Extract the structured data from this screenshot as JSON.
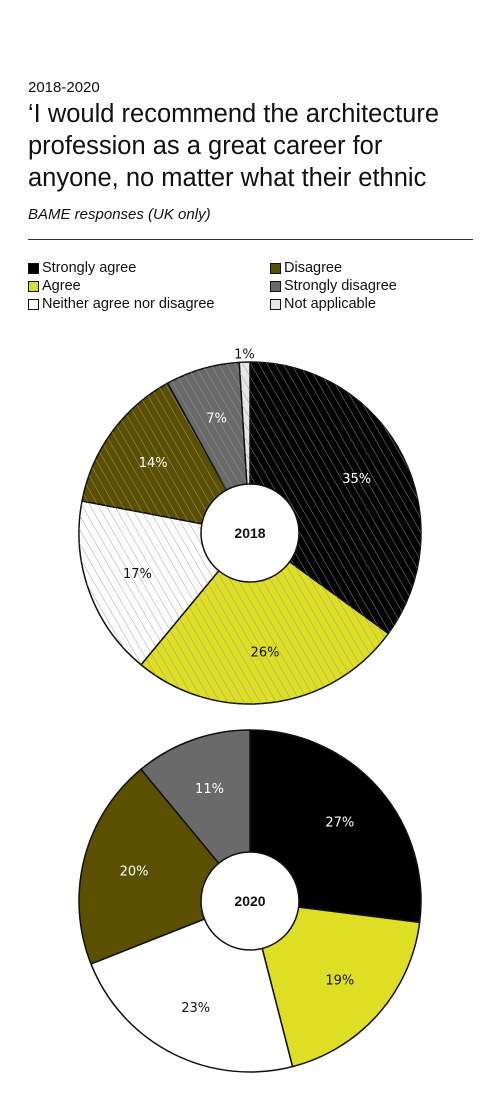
{
  "header": {
    "years": "2018-2020",
    "title_lines": [
      "‘I would recommend the architecture",
      "profession as a great career for",
      "anyone, no matter what their ethnic"
    ],
    "subtitle": "BAME responses (UK only)"
  },
  "legend": [
    {
      "label": "Strongly agree",
      "color": "#000000"
    },
    {
      "label": "Agree",
      "color": "#dede24"
    },
    {
      "label": "Neither agree nor disagree",
      "color": "#ffffff"
    },
    {
      "label": "Disagree",
      "color": "#5b5000"
    },
    {
      "label": "Strongly disagree",
      "color": "#6a6a6a"
    },
    {
      "label": "Not applicable",
      "color": "#e6e6e6"
    }
  ],
  "chart_data": [
    {
      "type": "pie",
      "center_label": "2018",
      "hatched": true,
      "categories": [
        "Strongly agree",
        "Agree",
        "Neither agree nor disagree",
        "Disagree",
        "Strongly disagree",
        "Not applicable"
      ],
      "values": [
        35,
        26,
        17,
        14,
        7,
        1
      ],
      "labels": [
        "35%",
        "26%",
        "17%",
        "14%",
        "7%",
        "1%"
      ],
      "colors": [
        "#000000",
        "#dede24",
        "#ffffff",
        "#5b5000",
        "#6a6a6a",
        "#e6e6e6"
      ],
      "label_colors": [
        "#ffffff",
        "#111111",
        "#111111",
        "#ffffff",
        "#ffffff",
        "#111111"
      ]
    },
    {
      "type": "pie",
      "center_label": "2020",
      "hatched": false,
      "categories": [
        "Strongly agree",
        "Agree",
        "Neither agree nor disagree",
        "Disagree",
        "Strongly disagree"
      ],
      "values": [
        27,
        19,
        23,
        20,
        11
      ],
      "labels": [
        "27%",
        "19%",
        "23%",
        "20%",
        "11%"
      ],
      "colors": [
        "#000000",
        "#dede24",
        "#ffffff",
        "#5b5000",
        "#6a6a6a"
      ],
      "label_colors": [
        "#ffffff",
        "#111111",
        "#111111",
        "#ffffff",
        "#ffffff"
      ]
    }
  ]
}
